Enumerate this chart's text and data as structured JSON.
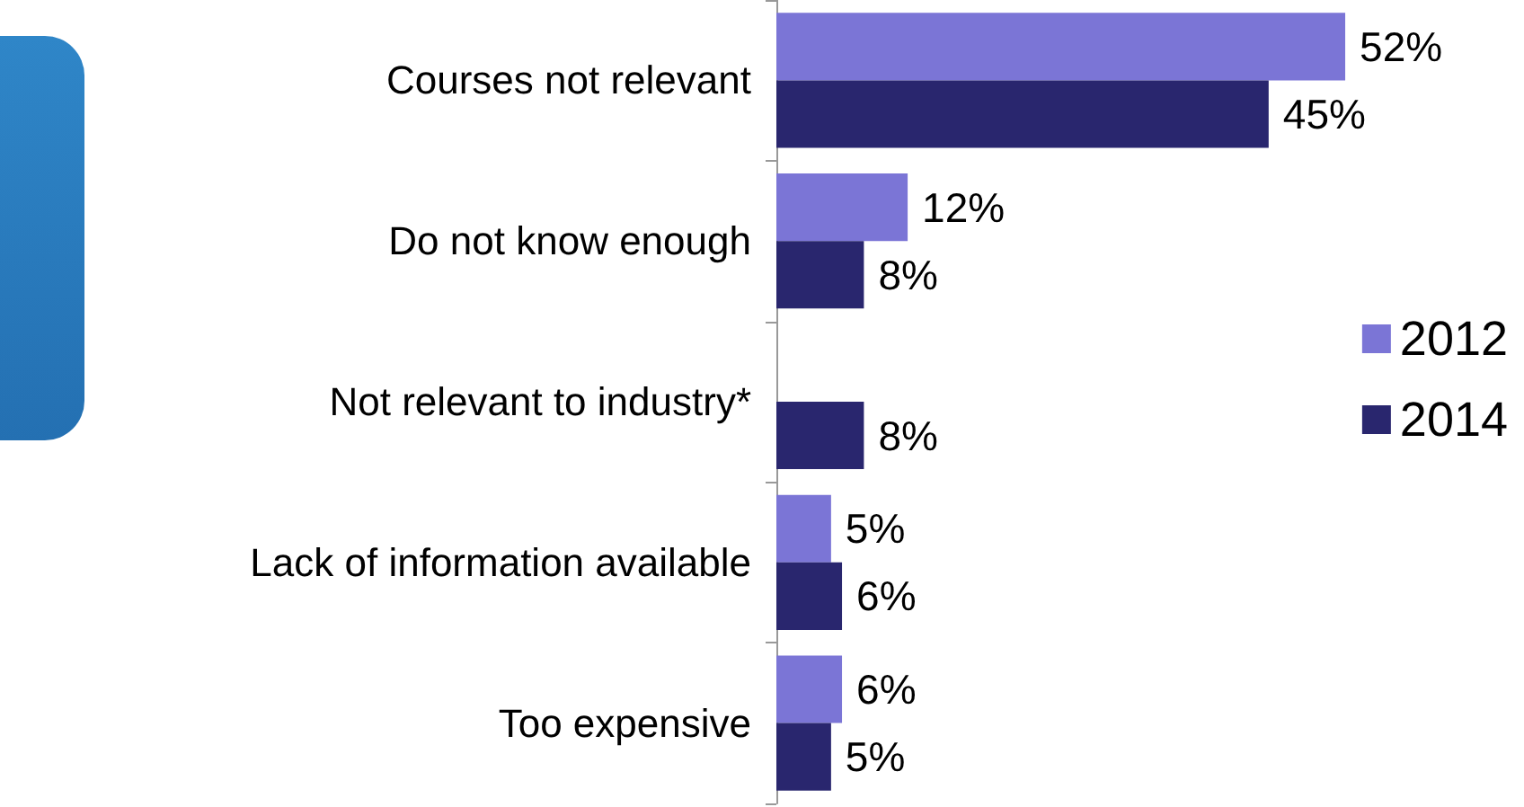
{
  "chart_data": {
    "type": "bar",
    "orientation": "horizontal",
    "categories": [
      "Courses not relevant",
      "Do not know enough",
      "Not relevant to industry*",
      "Lack of information available",
      "Too expensive"
    ],
    "series": [
      {
        "name": "2012",
        "color": "#7b75d6",
        "values": [
          52,
          12,
          null,
          5,
          6
        ],
        "value_labels": [
          "52%",
          "12%",
          null,
          "5%",
          "6%"
        ]
      },
      {
        "name": "2014",
        "color": "#29266e",
        "values": [
          45,
          8,
          8,
          6,
          5
        ],
        "value_labels": [
          "45%",
          "8%",
          "8%",
          "6%",
          "5%"
        ]
      }
    ],
    "legend": "right"
  }
}
